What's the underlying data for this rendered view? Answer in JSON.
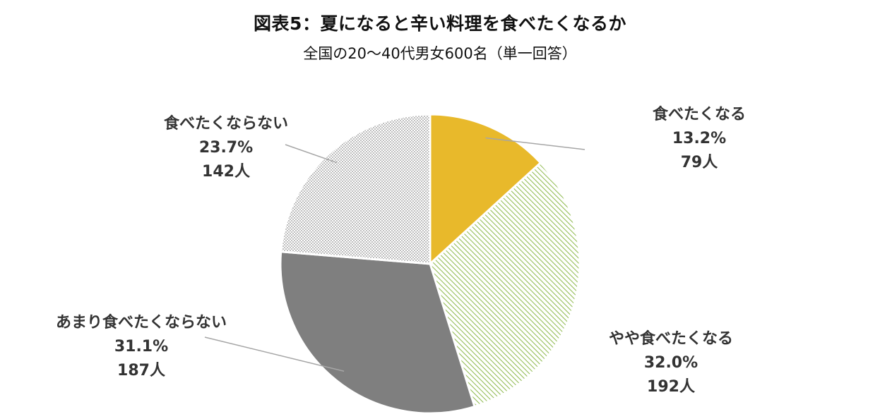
{
  "title": "図表5：夏になると辛い料理を食べたくなるか",
  "subtitle": "全国の20～40代男女600名（単一回答）",
  "chart_data": {
    "type": "pie",
    "start_angle_deg": 0,
    "direction": "clockwise",
    "slices": [
      {
        "label": "食べたくなる",
        "percent": 13.2,
        "percent_text": "13.2%",
        "count_text": "79人",
        "color": "#e8b92b",
        "pattern": "solid"
      },
      {
        "label": "やや食べたくなる",
        "percent": 32.0,
        "percent_text": "32.0%",
        "count_text": "192人",
        "color": "#8cb84a",
        "pattern": "diagonal-hatch"
      },
      {
        "label": "あまり食べたくならない",
        "percent": 31.1,
        "percent_text": "31.1%",
        "count_text": "187人",
        "color": "#7f7f7f",
        "pattern": "solid"
      },
      {
        "label": "食べたくならない",
        "percent": 23.7,
        "percent_text": "23.7%",
        "count_text": "142人",
        "color": "#a6a6a6",
        "pattern": "dots"
      }
    ]
  }
}
